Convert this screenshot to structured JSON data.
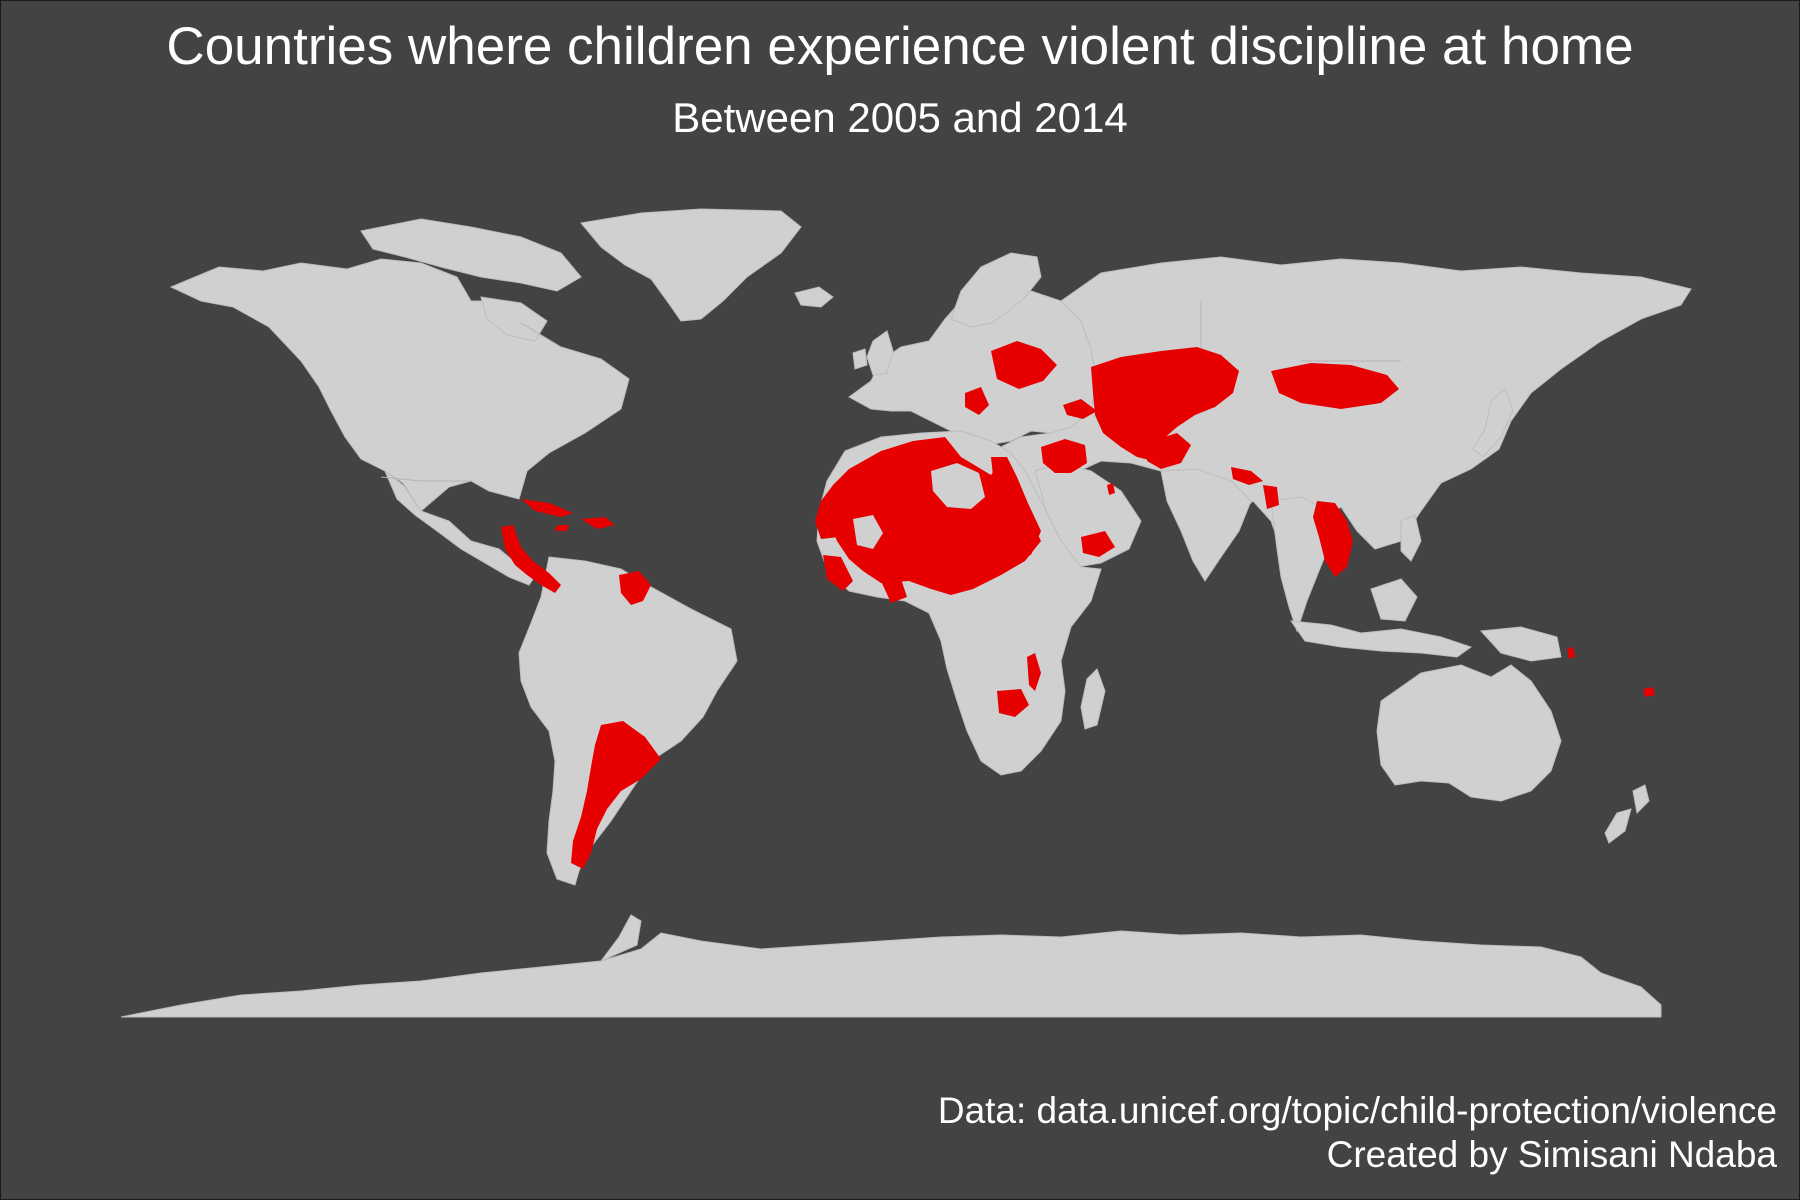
{
  "title": "Countries where children experience violent discipline at home",
  "subtitle": "Between 2005 and 2014",
  "caption": {
    "source": "Data: data.unicef.org/topic/child-protection/violence",
    "author": "Created by Simisani Ndaba"
  },
  "colors": {
    "background": "#434343",
    "land": "#d0d0d0",
    "highlight": "#e60000",
    "text": "#ffffff"
  },
  "map": {
    "projection": "equirectangular",
    "highlighted_countries": [
      "Argentina",
      "Suriname",
      "Guyana",
      "Cuba",
      "Jamaica",
      "Dominican Republic",
      "Haiti",
      "Belize",
      "Honduras",
      "El Salvador",
      "Costa Rica",
      "Panama",
      "Morocco",
      "Western Sahara",
      "Mauritania",
      "Mali",
      "Algeria",
      "Tunisia",
      "Niger",
      "Chad",
      "Sudan",
      "Egypt",
      "Nigeria",
      "Cameroon",
      "Central African Republic",
      "Ghana",
      "Togo",
      "Gambia",
      "Guinea-Bissau",
      "Sierra Leone",
      "Malawi",
      "Zimbabwe",
      "Ukraine",
      "Belarus",
      "Serbia",
      "Bosnia and Herzegovina",
      "Montenegro",
      "North Macedonia",
      "Georgia",
      "Armenia",
      "Azerbaijan",
      "Kazakhstan",
      "Kyrgyzstan",
      "Tajikistan",
      "Turkmenistan",
      "Afghanistan",
      "Mongolia",
      "Syria",
      "Jordan",
      "Iraq",
      "Palestine",
      "Yemen",
      "Qatar",
      "Nepal",
      "Bangladesh",
      "Bhutan",
      "Myanmar",
      "Laos",
      "Vietnam",
      "Thailand",
      "Vanuatu",
      "Fiji"
    ]
  }
}
